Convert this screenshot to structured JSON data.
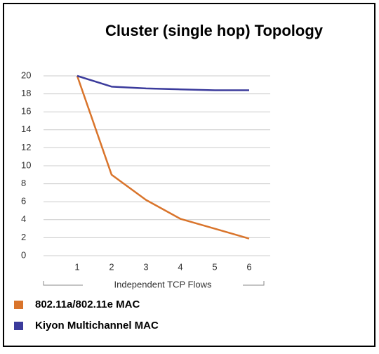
{
  "chart_data": {
    "type": "line",
    "title": "Cluster (single hop) Topology",
    "x_label": "Independent TCP Flows",
    "categories": [
      "1",
      "2",
      "3",
      "4",
      "5",
      "6"
    ],
    "series": [
      {
        "name": "802.11a/802.11e MAC",
        "color": "#d9742b",
        "values": [
          20,
          9,
          6.2,
          4.1,
          3,
          1.9
        ]
      },
      {
        "name": "Kiyon Multichannel MAC",
        "color": "#3b3b9c",
        "values": [
          20,
          18.8,
          18.6,
          18.5,
          18.4,
          18.4
        ]
      }
    ],
    "ylim": [
      0,
      20
    ],
    "yticks": [
      0,
      2,
      4,
      6,
      8,
      10,
      12,
      14,
      16,
      18,
      20
    ],
    "grid": true
  }
}
